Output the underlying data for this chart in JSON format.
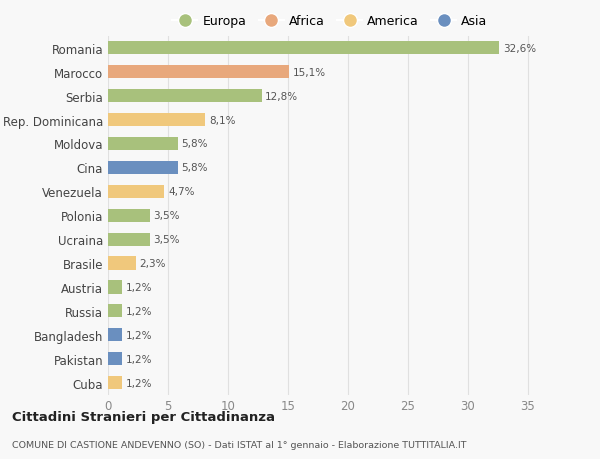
{
  "countries": [
    "Romania",
    "Marocco",
    "Serbia",
    "Rep. Dominicana",
    "Moldova",
    "Cina",
    "Venezuela",
    "Polonia",
    "Ucraina",
    "Brasile",
    "Austria",
    "Russia",
    "Bangladesh",
    "Pakistan",
    "Cuba"
  ],
  "values": [
    32.6,
    15.1,
    12.8,
    8.1,
    5.8,
    5.8,
    4.7,
    3.5,
    3.5,
    2.3,
    1.2,
    1.2,
    1.2,
    1.2,
    1.2
  ],
  "labels": [
    "32,6%",
    "15,1%",
    "12,8%",
    "8,1%",
    "5,8%",
    "5,8%",
    "4,7%",
    "3,5%",
    "3,5%",
    "2,3%",
    "1,2%",
    "1,2%",
    "1,2%",
    "1,2%",
    "1,2%"
  ],
  "colors": [
    "#a8c17c",
    "#e8a87c",
    "#a8c17c",
    "#f0c87c",
    "#a8c17c",
    "#6a8fbf",
    "#f0c87c",
    "#a8c17c",
    "#a8c17c",
    "#f0c87c",
    "#a8c17c",
    "#a8c17c",
    "#6a8fbf",
    "#6a8fbf",
    "#f0c87c"
  ],
  "legend_labels": [
    "Europa",
    "Africa",
    "America",
    "Asia"
  ],
  "legend_colors": [
    "#a8c17c",
    "#e8a87c",
    "#f0c87c",
    "#6a8fbf"
  ],
  "title": "Cittadini Stranieri per Cittadinanza",
  "subtitle": "COMUNE DI CASTIONE ANDEVENNO (SO) - Dati ISTAT al 1° gennaio - Elaborazione TUTTITALIA.IT",
  "xlim": [
    0,
    37
  ],
  "xticks": [
    0,
    5,
    10,
    15,
    20,
    25,
    30,
    35
  ],
  "bg_color": "#f8f8f8",
  "grid_color": "#e0e0e0",
  "bar_height": 0.55
}
